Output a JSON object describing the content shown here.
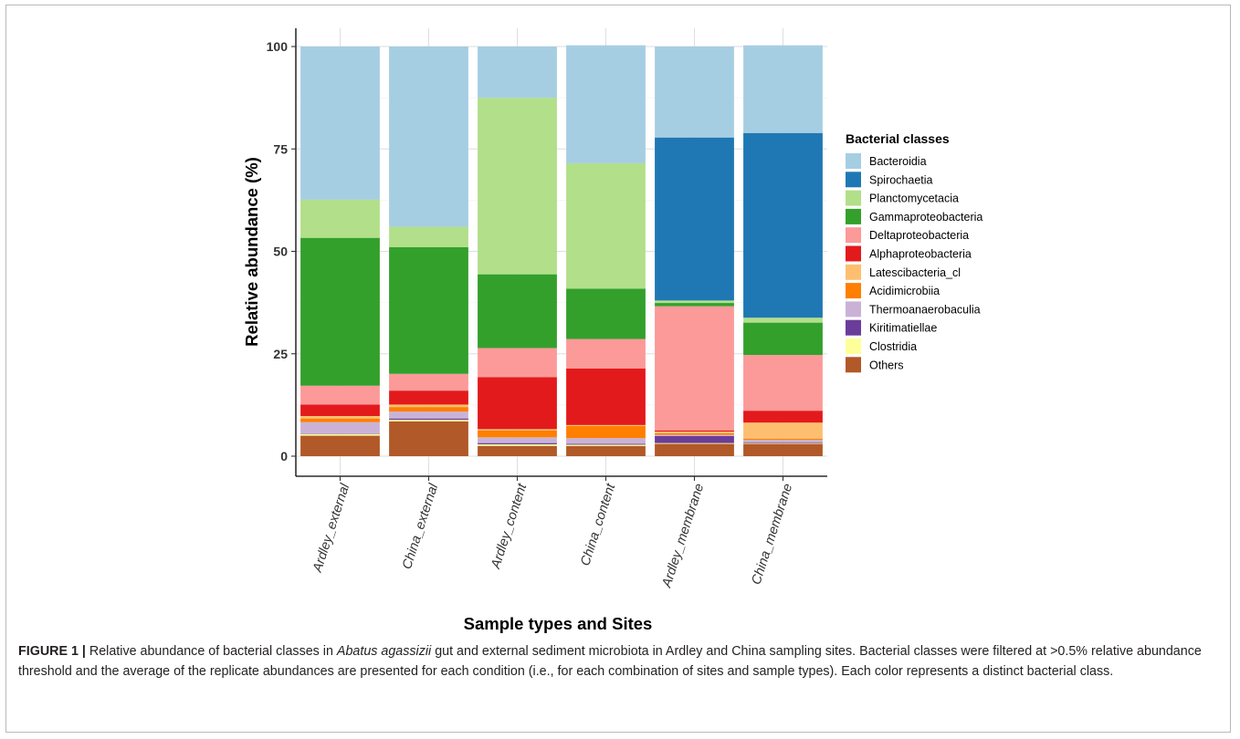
{
  "chart_data": {
    "type": "bar",
    "stacked": true,
    "ylabel": "Relative abundance (%)",
    "xlabel": "Sample types and Sites",
    "ylim": [
      0,
      100
    ],
    "yticks": [
      0,
      25,
      50,
      75,
      100
    ],
    "grid": true,
    "legend_title": "Bacterial classes",
    "legend_position": "right",
    "categories": [
      "Ardley_external",
      "China_external",
      "Ardley_content",
      "China_content",
      "Ardley_membrane",
      "China_membrane"
    ],
    "series": [
      {
        "name": "Others",
        "color": "#b15928",
        "values": [
          5.0,
          8.5,
          2.5,
          2.5,
          3.0,
          3.0
        ]
      },
      {
        "name": "Clostridia",
        "color": "#ffff99",
        "values": [
          0.4,
          0.4,
          0.4,
          0.3,
          0.2,
          0.2
        ]
      },
      {
        "name": "Kiritimatiellae",
        "color": "#6a3d9a",
        "values": [
          0.1,
          0.3,
          0.3,
          0.2,
          1.7,
          0.2
        ]
      },
      {
        "name": "Thermoanaerobaculia",
        "color": "#cab2d6",
        "values": [
          2.8,
          1.7,
          1.4,
          1.4,
          0.3,
          0.6
        ]
      },
      {
        "name": "Acidimicrobiia",
        "color": "#ff7f00",
        "values": [
          0.9,
          1.1,
          1.7,
          3.0,
          0.4,
          0.3
        ]
      },
      {
        "name": "Latescibacteria_cl",
        "color": "#fdbf6f",
        "values": [
          0.6,
          0.6,
          0.3,
          0.2,
          0.4,
          3.9
        ]
      },
      {
        "name": "Alphaproteobacteria",
        "color": "#e31a1c",
        "values": [
          2.8,
          3.4,
          12.7,
          13.8,
          0.3,
          2.9
        ]
      },
      {
        "name": "Deltaproteobacteria",
        "color": "#fb9a99",
        "values": [
          4.6,
          4.1,
          7.1,
          7.2,
          30.3,
          13.6
        ]
      },
      {
        "name": "Gammaproteobacteria",
        "color": "#33a02c",
        "values": [
          36.1,
          30.9,
          18.0,
          12.3,
          0.8,
          7.9
        ]
      },
      {
        "name": "Planctomycetacia",
        "color": "#b2df8a",
        "values": [
          9.3,
          5.0,
          43.1,
          30.6,
          0.6,
          1.2
        ]
      },
      {
        "name": "Spirochaetia",
        "color": "#1f78b4",
        "values": [
          0,
          0,
          0,
          0,
          39.8,
          45.1
        ]
      },
      {
        "name": "Bacteroidia",
        "color": "#a6cee3",
        "values": [
          37.4,
          44.0,
          12.5,
          28.8,
          22.2,
          21.4
        ]
      }
    ],
    "legend_order": [
      "Bacteroidia",
      "Spirochaetia",
      "Planctomycetacia",
      "Gammaproteobacteria",
      "Deltaproteobacteria",
      "Alphaproteobacteria",
      "Latescibacteria_cl",
      "Acidimicrobiia",
      "Thermoanaerobaculia",
      "Kiritimatiellae",
      "Clostridia",
      "Others"
    ]
  },
  "caption": {
    "label": "FIGURE 1 |",
    "text_before_italic": " Relative abundance of bacterial classes in ",
    "italic": "Abatus agassizii",
    "text_after_italic": " gut and external sediment microbiota in Ardley and China sampling sites. Bacterial classes were filtered at >0.5% relative abundance threshold and the average of the replicate abundances are presented for each condition (i.e., for each combination of sites and sample types). Each color represents a distinct bacterial class."
  }
}
